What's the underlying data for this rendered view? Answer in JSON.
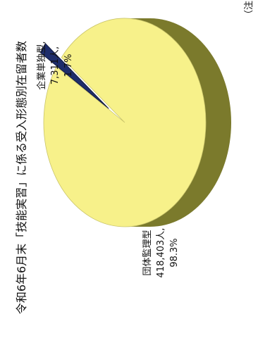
{
  "chart_data": {
    "type": "pie",
    "title": "令和6年6月末「技能実習」に係る受入形態別在留者数",
    "series": [
      {
        "name": "団体監理型",
        "count_label": "418,403人,",
        "pct_label": "98.3%",
        "value": 418403,
        "percent": 98.3,
        "color": "#f7f18a",
        "side_color": "#7b7a2c"
      },
      {
        "name": "企業単独型,",
        "count_label": "7,311人,",
        "pct_label": "1.7%",
        "value": 7311,
        "percent": 1.7,
        "color": "#1e2d6b",
        "side_color": "#0f1738"
      }
    ]
  },
  "note_fragment": "（注"
}
